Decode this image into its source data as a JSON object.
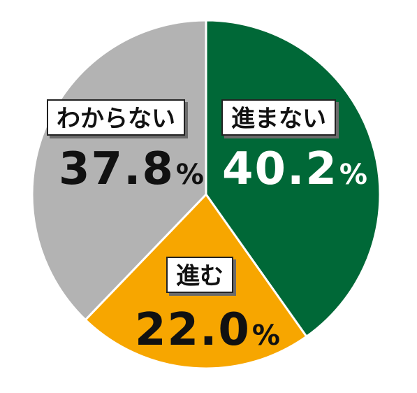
{
  "chart_data": {
    "type": "pie",
    "slices": [
      {
        "label": "進まない",
        "value": 40.2,
        "color": "#006837",
        "text_color": "#ffffff"
      },
      {
        "label": "進む",
        "value": 22.0,
        "color": "#f7a600",
        "text_color": "#111111"
      },
      {
        "label": "わからない",
        "value": 37.8,
        "color": "#b3b3b3",
        "text_color": "#111111"
      }
    ],
    "value_suffix": "%",
    "start_angle": "top",
    "direction": "clockwise"
  }
}
